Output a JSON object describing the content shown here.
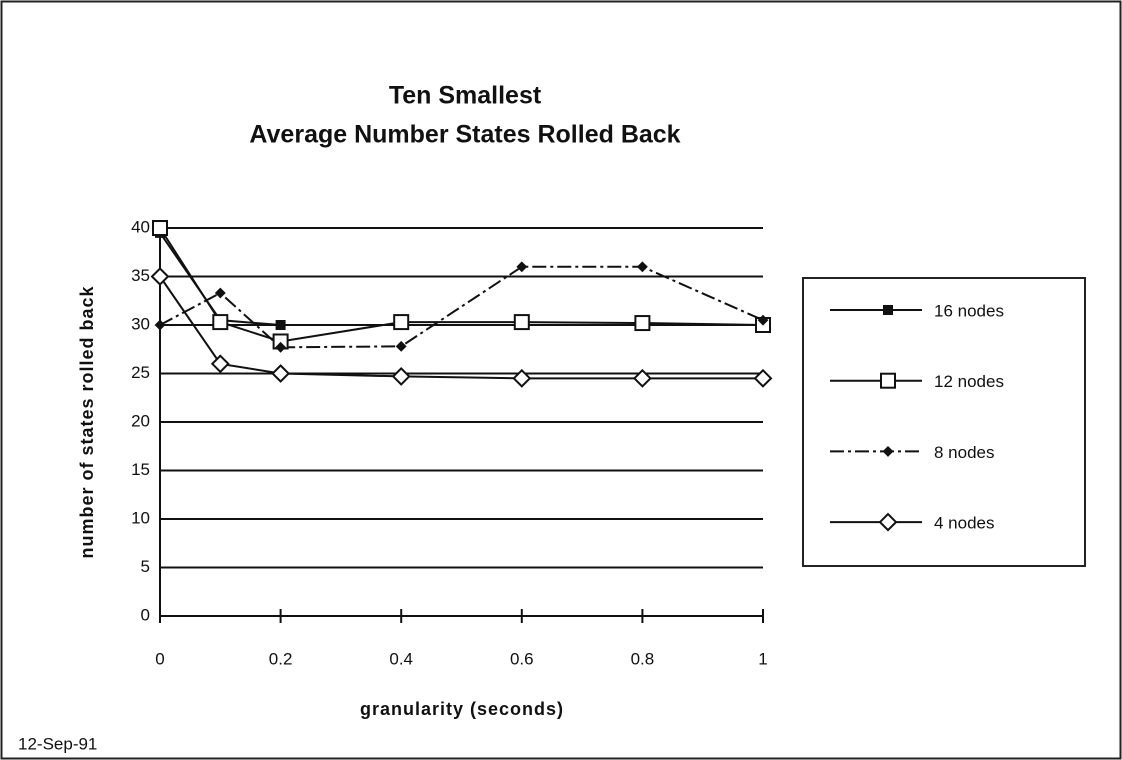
{
  "chart_data": {
    "type": "line",
    "title": "Ten Smallest",
    "subtitle": "Average Number States Rolled Back",
    "x_label": "granularity  (seconds)",
    "y_label": "number of states rolled back",
    "annotation": "12-Sep-91",
    "x": [
      0,
      0.1,
      0.2,
      0.4,
      0.6,
      0.8,
      1
    ],
    "xlim": [
      0,
      1
    ],
    "xticks": [
      0,
      0.2,
      0.4,
      0.6,
      0.8,
      1
    ],
    "ylim": [
      0,
      40
    ],
    "yticks": [
      0,
      5,
      10,
      15,
      20,
      25,
      30,
      35,
      40
    ],
    "grid": true,
    "legend": "right",
    "series": [
      {
        "name": "16 nodes",
        "color": "#111111",
        "marker": "filled-square",
        "values": [
          39.5,
          30.5,
          30,
          30,
          30,
          30,
          30
        ]
      },
      {
        "name": "12 nodes",
        "color": "#111111",
        "marker": "open-square",
        "values": [
          40,
          30.3,
          28.3,
          30.3,
          30.3,
          30.2,
          30
        ]
      },
      {
        "name": "8 nodes",
        "color": "#111111",
        "marker": "dot-diamond",
        "values": [
          30,
          33.3,
          27.7,
          27.8,
          36,
          36,
          30.5
        ]
      },
      {
        "name": "4 nodes",
        "color": "#111111",
        "marker": "open-diamond",
        "values": [
          35,
          26,
          25,
          24.7,
          24.5,
          24.5,
          24.5
        ]
      }
    ]
  }
}
